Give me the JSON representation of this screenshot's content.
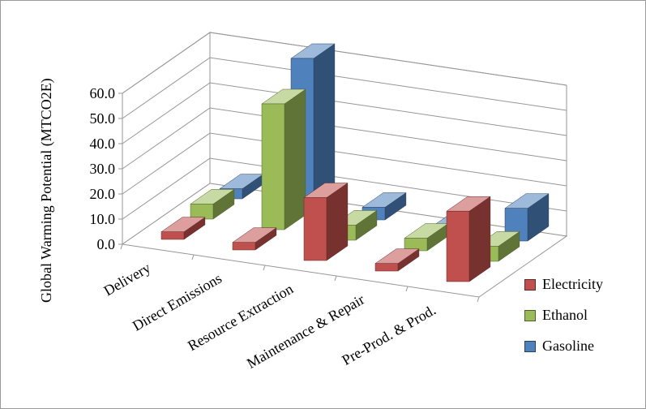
{
  "chart_data": {
    "type": "bar",
    "subtype": "3d-column",
    "title": "",
    "categories": [
      "Delivery",
      "Direct Emissions",
      "Resource Extraction",
      "Maintenance & Repair",
      "Pre-Prod. & Prod."
    ],
    "series": [
      {
        "name": "Electricity",
        "color": "#C0504D",
        "values": [
          3,
          3,
          25,
          3,
          28
        ]
      },
      {
        "name": "Ethanol",
        "color": "#9BBB59",
        "values": [
          6,
          50,
          6,
          5,
          6
        ]
      },
      {
        "name": "Gasoline",
        "color": "#4F81BD",
        "values": [
          4,
          60,
          5,
          2,
          13
        ]
      }
    ],
    "ylabel": "Global Warming Potential (MTCO2E)",
    "xlabel": "",
    "ylim": [
      0,
      60
    ],
    "ytick_step": 10,
    "ytick_labels": [
      "0.0",
      "10.0",
      "20.0",
      "30.0",
      "40.0",
      "50.0",
      "60.0"
    ],
    "grid": true,
    "legend_position": "bottom-right",
    "background_color": "#FFFFFF",
    "gridline_color": "#969696"
  }
}
